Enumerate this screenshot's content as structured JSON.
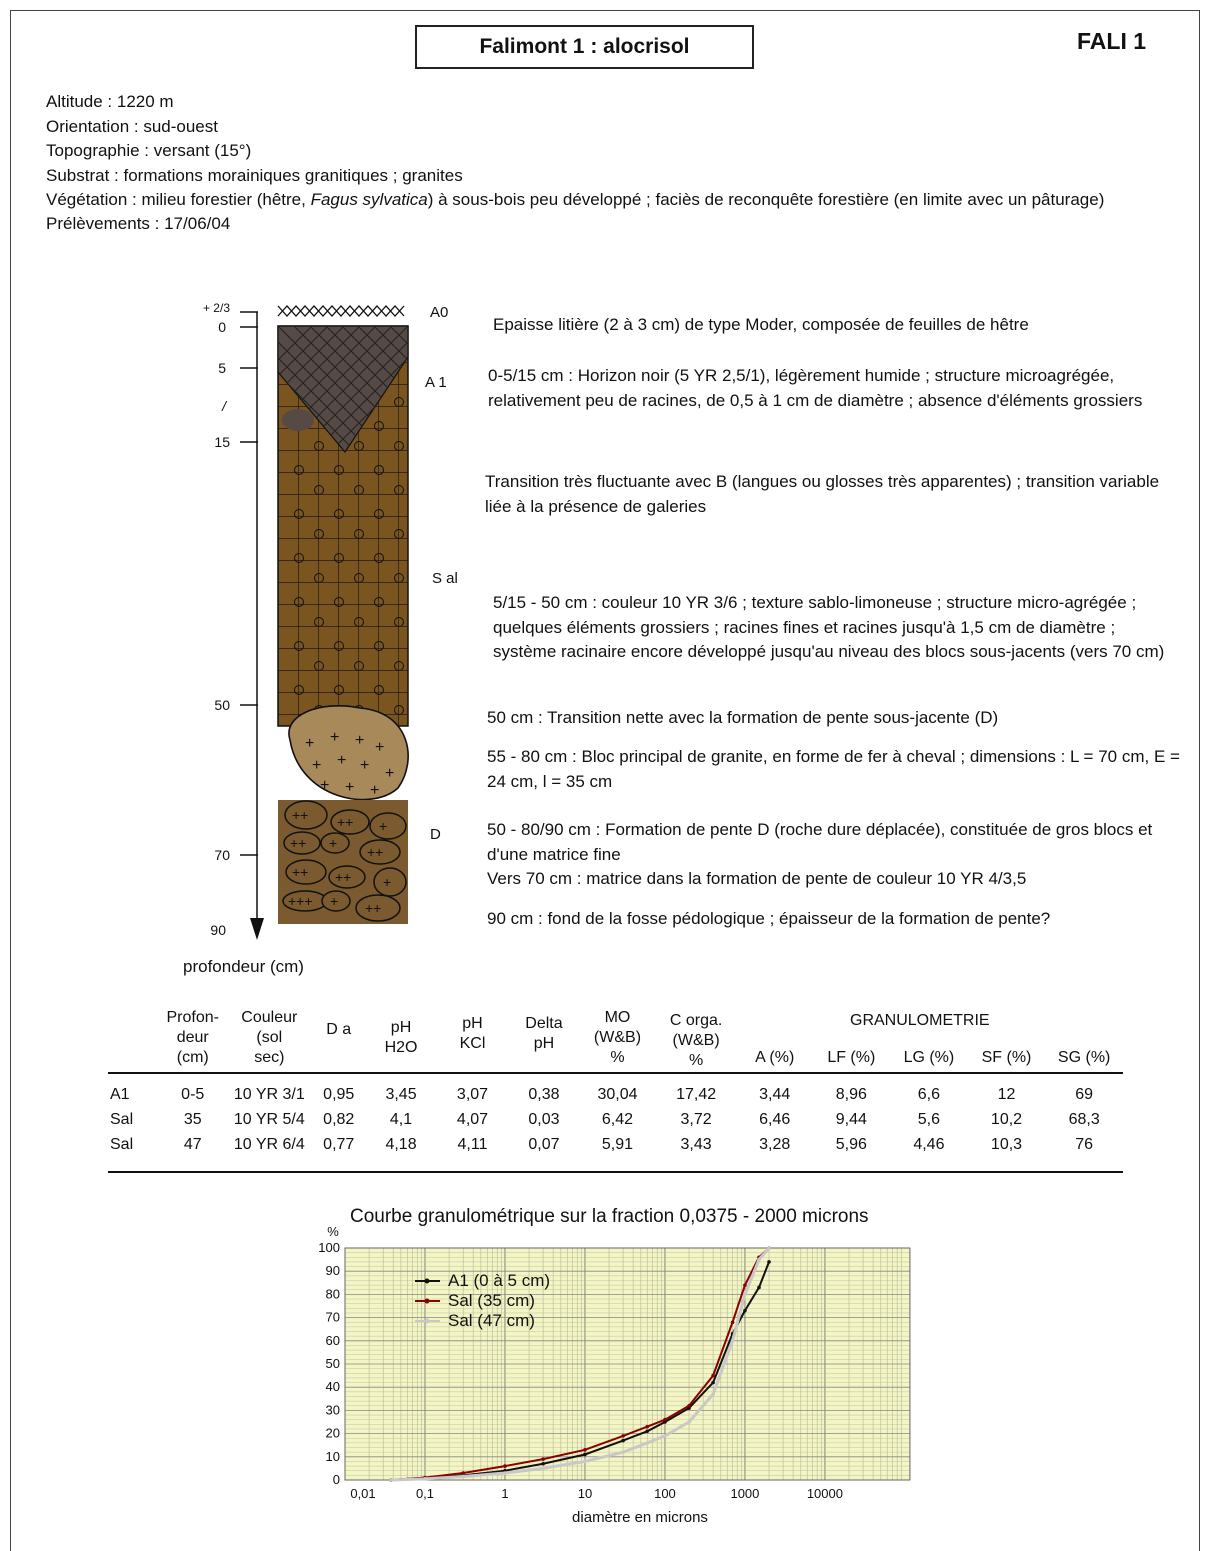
{
  "header": {
    "title": "Falimont 1 : alocrisol",
    "code": "FALI 1"
  },
  "meta": {
    "altitude": "Altitude : 1220 m",
    "orientation": "Orientation : sud-ouest",
    "topographie": "Topographie : versant (15°)",
    "substrat": "Substrat : formations morainiques granitiques ; granites",
    "vegetation_a": "Végétation : milieu forestier (hêtre, ",
    "vegetation_italic": "Fagus sylvatica",
    "vegetation_b": ") à sous-bois peu développé ; faciès de reconquête forestière (en limite avec un pâturage)",
    "prelevements": "Prélèvements : 17/06/04"
  },
  "profile": {
    "depth_labels": [
      "+ 2/3",
      "0",
      "5",
      "/",
      "15",
      "50",
      "70",
      "90"
    ],
    "horizons": [
      "A0",
      "A 1",
      "S al",
      "D"
    ],
    "axis_caption": "profondeur (cm)",
    "colors": {
      "litter": "#ffffff",
      "a1": "#564a47",
      "sal": "#7a5520",
      "bloc": "#a8895a",
      "d": "#7a5a2e"
    }
  },
  "descriptions": [
    "Epaisse litière (2 à 3 cm) de type Moder, composée de feuilles de hêtre",
    "0-5/15 cm : Horizon noir (5 YR 2,5/1), légèrement humide ; structure microagrégée, relativement peu de racines, de 0,5 à 1 cm de diamètre ; absence d'éléments grossiers",
    "Transition très fluctuante avec B (langues ou glosses très apparentes) ; transition variable liée à la présence de galeries",
    "5/15 - 50 cm : couleur 10 YR 3/6 ; texture sablo-limoneuse ; structure micro-agrégée ; quelques éléments grossiers ; racines fines et racines jusqu'à 1,5 cm de diamètre ; système racinaire encore développé jusqu'au niveau des blocs sous-jacents (vers 70 cm)",
    "50 cm : Transition nette avec la formation de pente sous-jacente (D)",
    "55 - 80 cm : Bloc principal de granite, en forme de fer à cheval ; dimensions : L = 70 cm, E = 24 cm, l = 35 cm",
    "50 - 80/90 cm : Formation de pente D (roche dure déplacée), constituée de gros blocs et d'une matrice fine",
    "Vers 70 cm : matrice dans la formation de pente de couleur 10 YR 4/3,5",
    "90 cm : fond de la fosse pédologique ; épaisseur de la formation de pente?"
  ],
  "table": {
    "headers": {
      "profondeur": [
        "Profon-",
        "deur",
        "(cm)"
      ],
      "couleur": [
        "Couleur",
        "(sol",
        "sec)"
      ],
      "da": "D a",
      "ph_h2o": [
        "pH",
        "H2O"
      ],
      "ph_kcl": [
        "pH",
        "KCl"
      ],
      "delta": [
        "Delta",
        "pH"
      ],
      "mo": [
        "MO",
        "(W&B)",
        "%"
      ],
      "corga": [
        "C orga.",
        "(W&B)",
        "%"
      ],
      "granulo": "GRANULOMETRIE",
      "gran_cols": [
        "A (%)",
        "LF (%)",
        "LG (%)",
        "SF (%)",
        "SG (%)"
      ]
    },
    "rows": [
      [
        "A1",
        "0-5",
        "10 YR 3/1",
        "0,95",
        "3,45",
        "3,07",
        "0,38",
        "30,04",
        "17,42",
        "3,44",
        "8,96",
        "6,6",
        "12",
        "69"
      ],
      [
        "Sal",
        "35",
        "10 YR 5/4",
        "0,82",
        "4,1",
        "4,07",
        "0,03",
        "6,42",
        "3,72",
        "6,46",
        "9,44",
        "5,6",
        "10,2",
        "68,3"
      ],
      [
        "Sal",
        "47",
        "10 YR 6/4",
        "0,77",
        "4,18",
        "4,11",
        "0,07",
        "5,91",
        "3,43",
        "3,28",
        "5,96",
        "4,46",
        "10,3",
        "76"
      ]
    ]
  },
  "chart_data": {
    "type": "line",
    "title": "Courbe granulométrique sur la fraction 0,0375 - 2000 microns",
    "xlabel": "diamètre en microns",
    "ylabel": "%",
    "xscale": "log",
    "xlim": [
      0.01,
      10000
    ],
    "ylim": [
      0,
      100
    ],
    "x_ticks": [
      "0,01",
      "0,1",
      "1",
      "10",
      "100",
      "1000",
      "10000"
    ],
    "y_ticks": [
      0,
      10,
      20,
      30,
      40,
      50,
      60,
      70,
      80,
      90,
      100
    ],
    "grid": true,
    "background": "#f3f5c5",
    "legend_position": "top-left",
    "series": [
      {
        "name": "A1 (0 à 5 cm)",
        "color": "#111111",
        "points": [
          [
            0.0375,
            0
          ],
          [
            0.1,
            1
          ],
          [
            0.3,
            2
          ],
          [
            1,
            4
          ],
          [
            3,
            7
          ],
          [
            10,
            11
          ],
          [
            30,
            17
          ],
          [
            60,
            21
          ],
          [
            100,
            25
          ],
          [
            200,
            31
          ],
          [
            400,
            42
          ],
          [
            700,
            63
          ],
          [
            1000,
            73
          ],
          [
            1500,
            83
          ],
          [
            2000,
            94
          ]
        ]
      },
      {
        "name": "Sal (35 cm)",
        "color": "#8b0000",
        "points": [
          [
            0.0375,
            0
          ],
          [
            0.1,
            1
          ],
          [
            0.3,
            3
          ],
          [
            1,
            6
          ],
          [
            3,
            9
          ],
          [
            10,
            13
          ],
          [
            30,
            19
          ],
          [
            60,
            23
          ],
          [
            100,
            26
          ],
          [
            200,
            32
          ],
          [
            400,
            45
          ],
          [
            700,
            68
          ],
          [
            1000,
            84
          ],
          [
            1500,
            96
          ],
          [
            2000,
            100
          ]
        ]
      },
      {
        "name": "Sal (47 cm)",
        "color": "#c8c8c8",
        "points": [
          [
            0.0375,
            0
          ],
          [
            0.1,
            0.5
          ],
          [
            0.3,
            1.5
          ],
          [
            1,
            3
          ],
          [
            3,
            5
          ],
          [
            10,
            8
          ],
          [
            30,
            12
          ],
          [
            60,
            16
          ],
          [
            100,
            19
          ],
          [
            200,
            25
          ],
          [
            400,
            37
          ],
          [
            700,
            60
          ],
          [
            1000,
            80
          ],
          [
            1500,
            95
          ],
          [
            2000,
            100
          ]
        ]
      }
    ]
  }
}
